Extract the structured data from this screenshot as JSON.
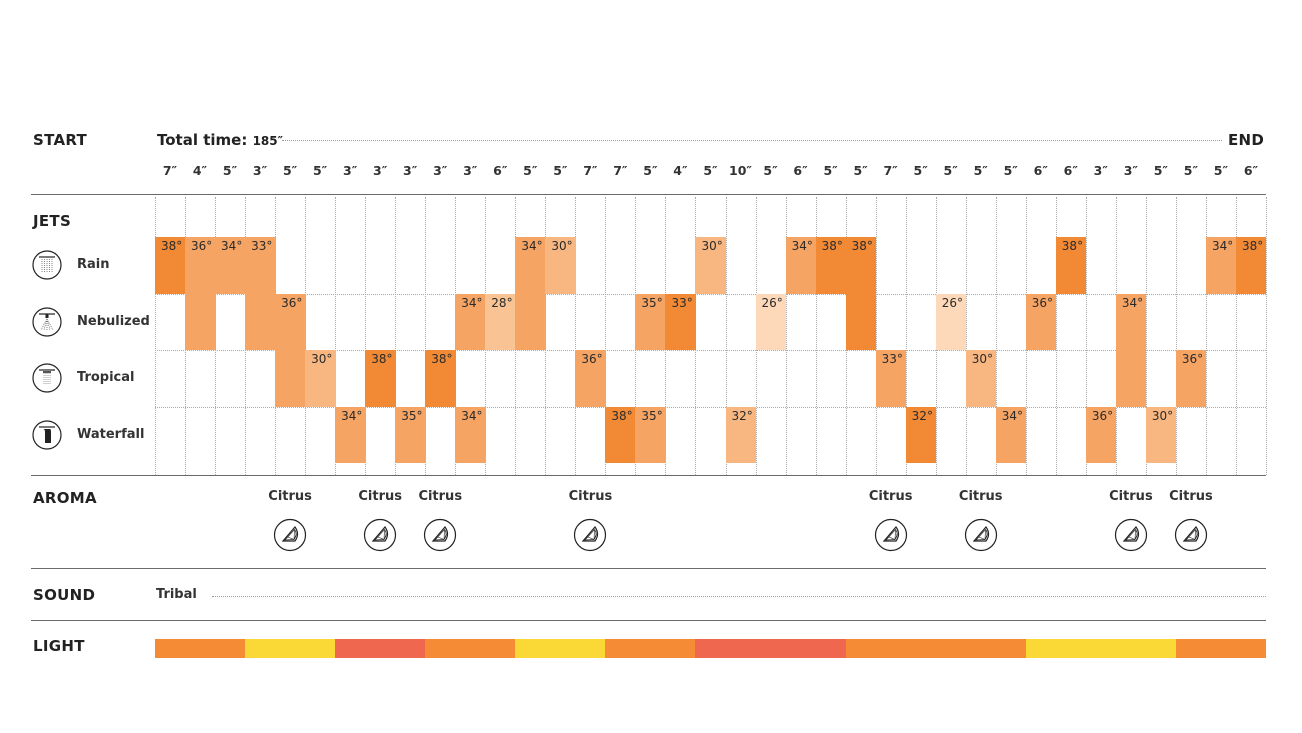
{
  "header": {
    "start_label": "START",
    "total_time_label": "Total time:",
    "total_time_value": "185″",
    "end_label": "END",
    "durations": [
      "7″",
      "4″",
      "5″",
      "3″",
      "5″",
      "5″",
      "3″",
      "3″",
      "3″",
      "3″",
      "3″",
      "6″",
      "5″",
      "5″",
      "7″",
      "7″",
      "5″",
      "4″",
      "5″",
      "10″",
      "5″",
      "6″",
      "5″",
      "5″",
      "7″",
      "5″",
      "5″",
      "5″",
      "5″",
      "6″",
      "6″",
      "3″",
      "3″",
      "5″",
      "5″",
      "5″",
      "6″"
    ]
  },
  "colors": {
    "dark": "#f28a35",
    "mid": "#f5a464",
    "light": "#f8b680",
    "pale": "#fac393",
    "palest": "#fdd8b9",
    "light_orange": "#f68b36",
    "light_yellow": "#fad835",
    "light_red": "#f0674f"
  },
  "jets": {
    "title": "JETS",
    "rows": [
      {
        "name": "Rain",
        "icon": "rain-shower-icon"
      },
      {
        "name": "Nebulized",
        "icon": "nebulized-shower-icon"
      },
      {
        "name": "Tropical",
        "icon": "tropical-shower-icon"
      },
      {
        "name": "Waterfall",
        "icon": "waterfall-shower-icon"
      }
    ],
    "blocks": [
      {
        "col": 0,
        "row": 0,
        "span": 1,
        "temp": "38°",
        "shade": "dark"
      },
      {
        "col": 1,
        "row": 0,
        "span": 2,
        "temp": "36°",
        "shade": "mid"
      },
      {
        "col": 2,
        "row": 0,
        "span": 1,
        "temp": "34°",
        "shade": "mid"
      },
      {
        "col": 3,
        "row": 0,
        "span": 2,
        "temp": "33°",
        "shade": "mid"
      },
      {
        "col": 4,
        "row": 1,
        "span": 2,
        "temp": "36°",
        "shade": "mid"
      },
      {
        "col": 5,
        "row": 2,
        "span": 1,
        "temp": "30°",
        "shade": "light"
      },
      {
        "col": 6,
        "row": 3,
        "span": 1,
        "temp": "34°",
        "shade": "mid"
      },
      {
        "col": 7,
        "row": 2,
        "span": 1,
        "temp": "38°",
        "shade": "dark"
      },
      {
        "col": 8,
        "row": 3,
        "span": 1,
        "temp": "35°",
        "shade": "mid"
      },
      {
        "col": 9,
        "row": 2,
        "span": 1,
        "temp": "38°",
        "shade": "dark"
      },
      {
        "col": 10,
        "row": 1,
        "span": 1,
        "temp": "34°",
        "shade": "mid"
      },
      {
        "col": 10,
        "row": 3,
        "span": 1,
        "temp": "34°",
        "shade": "mid"
      },
      {
        "col": 11,
        "row": 1,
        "span": 1,
        "temp": "28°",
        "shade": "pale"
      },
      {
        "col": 12,
        "row": 0,
        "span": 2,
        "temp": "34°",
        "shade": "mid"
      },
      {
        "col": 13,
        "row": 0,
        "span": 1,
        "temp": "30°",
        "shade": "light"
      },
      {
        "col": 14,
        "row": 2,
        "span": 1,
        "temp": "36°",
        "shade": "mid"
      },
      {
        "col": 15,
        "row": 3,
        "span": 1,
        "temp": "38°",
        "shade": "dark"
      },
      {
        "col": 16,
        "row": 1,
        "span": 1,
        "temp": "35°",
        "shade": "mid"
      },
      {
        "col": 16,
        "row": 3,
        "span": 1,
        "temp": "35°",
        "shade": "mid"
      },
      {
        "col": 17,
        "row": 1,
        "span": 1,
        "temp": "33°",
        "shade": "dark"
      },
      {
        "col": 18,
        "row": 0,
        "span": 1,
        "temp": "30°",
        "shade": "light"
      },
      {
        "col": 19,
        "row": 3,
        "span": 1,
        "temp": "32°",
        "shade": "light"
      },
      {
        "col": 20,
        "row": 1,
        "span": 1,
        "temp": "26°",
        "shade": "palest"
      },
      {
        "col": 21,
        "row": 0,
        "span": 1,
        "temp": "34°",
        "shade": "mid"
      },
      {
        "col": 22,
        "row": 0,
        "span": 1,
        "temp": "38°",
        "shade": "dark"
      },
      {
        "col": 23,
        "row": 0,
        "span": 2,
        "temp": "38°",
        "shade": "dark"
      },
      {
        "col": 24,
        "row": 2,
        "span": 1,
        "temp": "33°",
        "shade": "mid"
      },
      {
        "col": 25,
        "row": 3,
        "span": 1,
        "temp": "32°",
        "shade": "dark"
      },
      {
        "col": 26,
        "row": 1,
        "span": 1,
        "temp": "26°",
        "shade": "palest"
      },
      {
        "col": 27,
        "row": 2,
        "span": 1,
        "temp": "30°",
        "shade": "light"
      },
      {
        "col": 28,
        "row": 3,
        "span": 1,
        "temp": "34°",
        "shade": "mid"
      },
      {
        "col": 29,
        "row": 1,
        "span": 1,
        "temp": "36°",
        "shade": "mid"
      },
      {
        "col": 30,
        "row": 0,
        "span": 1,
        "temp": "38°",
        "shade": "dark"
      },
      {
        "col": 31,
        "row": 3,
        "span": 1,
        "temp": "36°",
        "shade": "mid"
      },
      {
        "col": 32,
        "row": 1,
        "span": 2,
        "temp": "34°",
        "shade": "mid"
      },
      {
        "col": 33,
        "row": 3,
        "span": 1,
        "temp": "30°",
        "shade": "light"
      },
      {
        "col": 34,
        "row": 2,
        "span": 1,
        "temp": "36°",
        "shade": "mid"
      },
      {
        "col": 35,
        "row": 0,
        "span": 1,
        "temp": "34°",
        "shade": "mid"
      },
      {
        "col": 36,
        "row": 0,
        "span": 1,
        "temp": "38°",
        "shade": "dark"
      }
    ]
  },
  "aroma": {
    "title": "AROMA",
    "icon": "citrus-slice-icon",
    "items": [
      {
        "col": 4,
        "label": "Citrus"
      },
      {
        "col": 7,
        "label": "Citrus"
      },
      {
        "col": 9,
        "label": "Citrus"
      },
      {
        "col": 14,
        "label": "Citrus"
      },
      {
        "col": 24,
        "label": "Citrus"
      },
      {
        "col": 27,
        "label": "Citrus"
      },
      {
        "col": 32,
        "label": "Citrus"
      },
      {
        "col": 34,
        "label": "Citrus"
      }
    ]
  },
  "sound": {
    "title": "SOUND",
    "track": "Tribal"
  },
  "light": {
    "title": "LIGHT",
    "segments": [
      {
        "from": 0,
        "to": 2,
        "color": "orange"
      },
      {
        "from": 3,
        "to": 5,
        "color": "yellow"
      },
      {
        "from": 6,
        "to": 8,
        "color": "red"
      },
      {
        "from": 9,
        "to": 11,
        "color": "orange"
      },
      {
        "from": 12,
        "to": 14,
        "color": "yellow"
      },
      {
        "from": 15,
        "to": 17,
        "color": "orange"
      },
      {
        "from": 18,
        "to": 22,
        "color": "red"
      },
      {
        "from": 23,
        "to": 28,
        "color": "orange"
      },
      {
        "from": 29,
        "to": 33,
        "color": "yellow"
      },
      {
        "from": 34,
        "to": 36,
        "color": "orange"
      }
    ]
  }
}
